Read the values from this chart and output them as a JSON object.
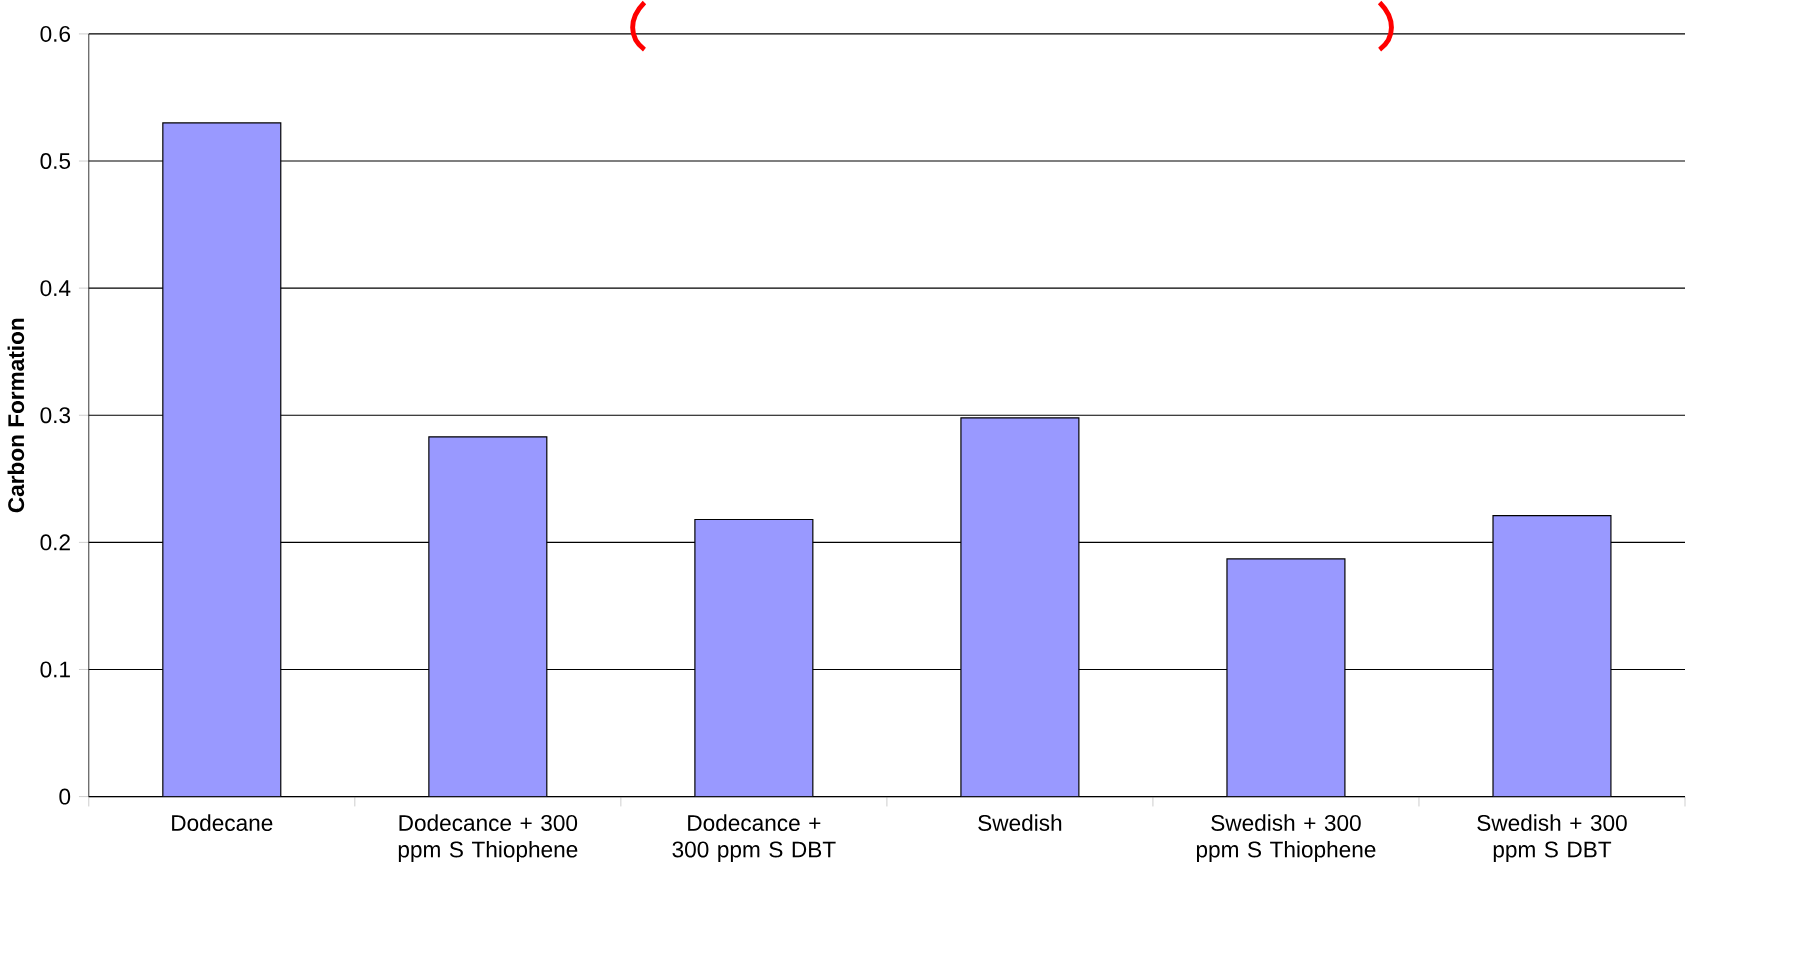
{
  "chart_data": {
    "type": "bar",
    "ylabel": "**Carbon Formation**",
    "categories": [
      "Dodecane",
      "Dodecance + 300 ppm S Thiophene",
      "Dodecance + 300 ppm S DBT",
      "Swedish",
      "Swedish + 300 ppm S Thiophene",
      "Swedish + 300 ppm S DBT"
    ],
    "values": [
      0.53,
      0.283,
      0.218,
      0.298,
      0.187,
      0.221
    ],
    "color": "#9999ff",
    "ylim": [
      0,
      0.6
    ],
    "yticks": [
      0,
      0.1,
      0.2,
      0.3,
      0.4,
      0.5,
      0.6
    ],
    "grid": "y"
  }
}
